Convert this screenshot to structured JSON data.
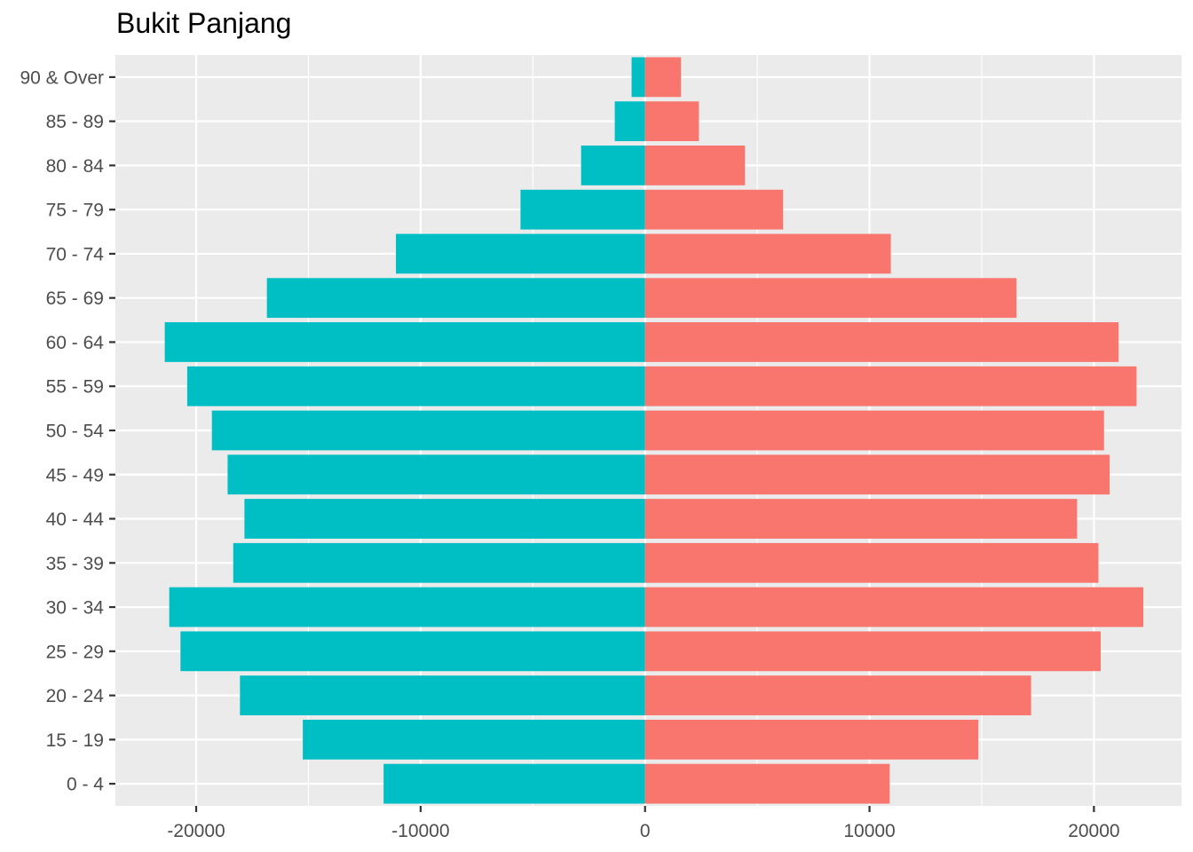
{
  "chart_data": {
    "type": "bar",
    "orientation": "horizontal",
    "layout": "population-pyramid",
    "title": "Bukit Panjang",
    "xlabel": "",
    "ylabel": "",
    "categories": [
      "0 - 4",
      "15 - 19",
      "20 - 24",
      "25 - 29",
      "30 - 34",
      "35 - 39",
      "40 - 44",
      "45 - 49",
      "50 - 54",
      "55 - 59",
      "60 - 64",
      "65 - 69",
      "70 - 74",
      "75 - 79",
      "80 - 84",
      "85 - 89",
      "90 & Over"
    ],
    "series": [
      {
        "color": "#00BFC4",
        "values": [
          -11650,
          -15250,
          -18050,
          -20700,
          -21200,
          -18350,
          -17850,
          -18600,
          -19300,
          -20400,
          -21400,
          -16850,
          -11100,
          -5550,
          -2850,
          -1350,
          -600
        ]
      },
      {
        "color": "#F8766D",
        "values": [
          10900,
          14850,
          17200,
          20300,
          22200,
          20200,
          19250,
          20700,
          20450,
          21900,
          21100,
          16550,
          10950,
          6150,
          4450,
          2400,
          1600
        ]
      }
    ],
    "xlim": [
      -23600,
      23900
    ],
    "xticks": [
      -20000,
      -10000,
      0,
      10000,
      20000
    ],
    "xtick_labels": [
      "-20000",
      "-10000",
      "0",
      "10000",
      "20000"
    ],
    "grid": true,
    "legend": "none",
    "panel_background": "#EBEBEB",
    "grid_color": "#FFFFFF"
  }
}
